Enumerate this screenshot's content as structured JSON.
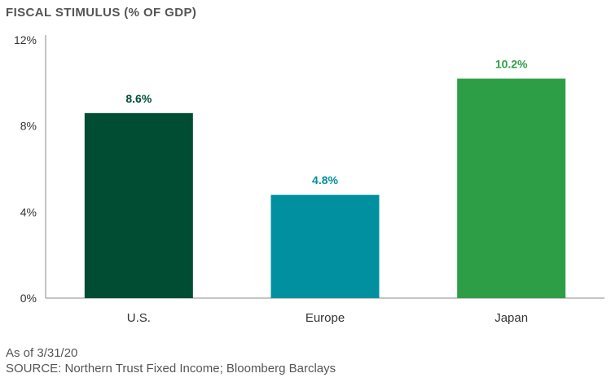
{
  "chart_data": {
    "type": "bar",
    "title": "FISCAL STIMULUS (% OF GDP)",
    "xlabel": "",
    "ylabel": "",
    "categories": [
      "U.S.",
      "Europe",
      "Japan"
    ],
    "values": [
      8.6,
      4.8,
      10.2
    ],
    "data_labels": [
      "8.6%",
      "4.8%",
      "10.2%"
    ],
    "bar_colors": [
      "#004d33",
      "#0090a0",
      "#2e9e46"
    ],
    "label_colors": [
      "#004d33",
      "#0090a0",
      "#2e9e46"
    ],
    "ylim": [
      0,
      12
    ],
    "yticks": [
      0,
      4,
      8,
      12
    ],
    "ytick_labels": [
      "0%",
      "4%",
      "8%",
      "12%"
    ],
    "grid": false,
    "legend": "none"
  },
  "notes": {
    "as_of": "As of 3/31/20",
    "source": "SOURCE: Northern Trust Fixed Income; Bloomberg Barclays"
  }
}
